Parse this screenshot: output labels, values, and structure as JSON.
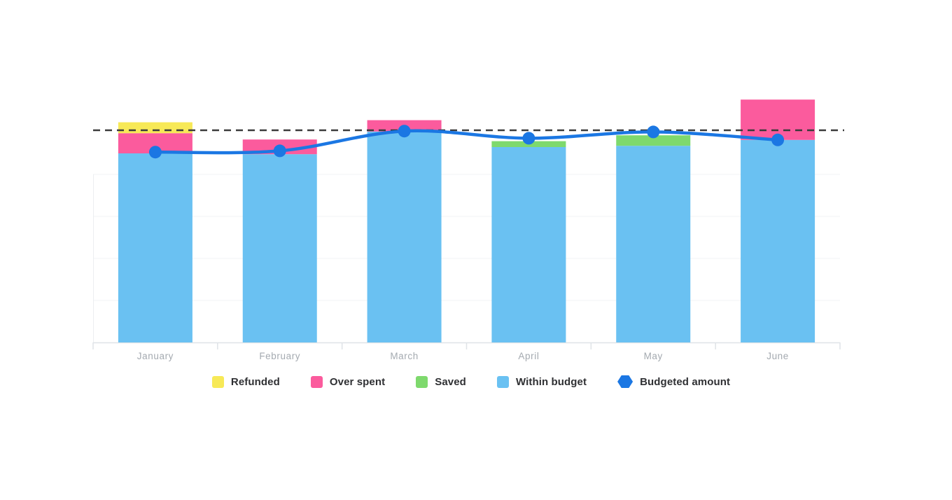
{
  "chart_data": {
    "type": "bar",
    "subtype": "stacked-bar-with-line",
    "title": "",
    "xlabel": "",
    "ylabel": "",
    "categories": [
      "January",
      "February",
      "March",
      "April",
      "May",
      "June"
    ],
    "series": [
      {
        "name": "Refunded",
        "type": "bar",
        "color": "#f7e957",
        "values": [
          2.6,
          0,
          0,
          0,
          0,
          0
        ]
      },
      {
        "name": "Over spent",
        "type": "bar",
        "color": "#fb5b9d",
        "values": [
          4.8,
          3.5,
          2.7,
          0,
          0,
          9.6
        ]
      },
      {
        "name": "Saved",
        "type": "bar",
        "color": "#7ed96d",
        "values": [
          0,
          0,
          0,
          1.4,
          2.5,
          0
        ]
      },
      {
        "name": "Within budget",
        "type": "bar",
        "color": "#6ac1f2",
        "values": [
          45,
          44.8,
          50.2,
          46.5,
          46.8,
          48.2
        ]
      },
      {
        "name": "Budgeted amount",
        "type": "line",
        "color": "#1b77e3",
        "values": [
          45.3,
          45.6,
          50.3,
          48.6,
          50.1,
          48.2
        ]
      }
    ],
    "stack_order": [
      "Within budget",
      "Saved",
      "Over spent",
      "Refunded"
    ],
    "annotation_line": {
      "value": 50.5,
      "style": "dashed",
      "color": "#3b3b3b"
    },
    "ylim": [
      0,
      62
    ],
    "grid": "horizontal",
    "grid_values": [
      10,
      20,
      30,
      40
    ],
    "grid_color": "#f2f3f5",
    "axis_color": "#dfe3e7",
    "legend_position": "bottom",
    "legend": {
      "items": [
        "Refunded",
        "Over spent",
        "Saved",
        "Within budget",
        "Budgeted amount"
      ]
    }
  }
}
